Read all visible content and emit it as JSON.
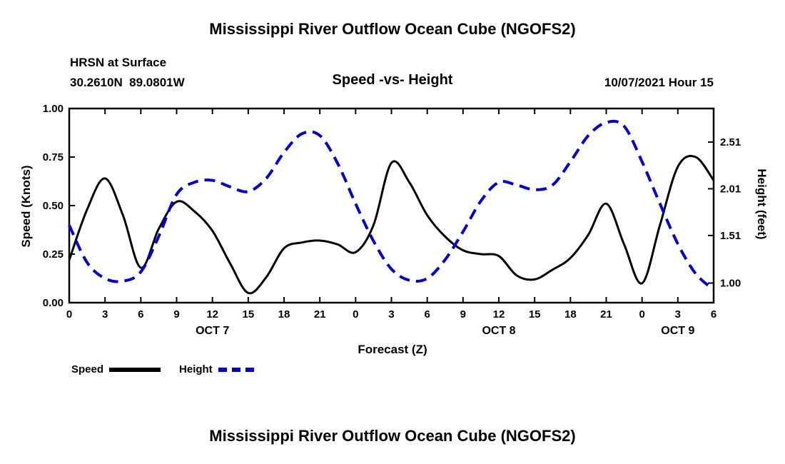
{
  "header": {
    "title": "Mississippi River Outflow Ocean Cube (NGOFS2)"
  },
  "meta": {
    "station": "HRSN at Surface",
    "coords": "30.2610N  89.0801W",
    "datetime": "10/07/2021 Hour 15"
  },
  "footer": {
    "title": "Mississippi River Outflow Ocean Cube (NGOFS2)"
  },
  "chart_data": {
    "type": "line",
    "title": "Speed -vs- Height",
    "xlabel": "Forecast (Z)",
    "x_start": 0,
    "x_step": 1.5,
    "x_end": 54,
    "x_tick_hours": [
      0,
      3,
      6,
      9,
      12,
      15,
      18,
      21,
      24,
      27,
      30,
      33,
      36,
      39,
      42,
      45,
      48,
      51,
      54
    ],
    "x_tick_labels": [
      "0",
      "3",
      "6",
      "9",
      "12",
      "15",
      "18",
      "21",
      "0",
      "3",
      "6",
      "9",
      "12",
      "15",
      "18",
      "21",
      "0",
      "3",
      "6"
    ],
    "date_ticks": [
      {
        "hour": 12,
        "label": "OCT 7"
      },
      {
        "hour": 36,
        "label": "OCT 8"
      },
      {
        "hour": 51,
        "label": "OCT 9"
      }
    ],
    "left_axis": {
      "label": "Speed (Knots)",
      "min": 0,
      "max": 1,
      "ticks": [
        {
          "value": 0.0,
          "label": "0.00"
        },
        {
          "value": 0.25,
          "label": "0.25"
        },
        {
          "value": 0.5,
          "label": "0.50"
        },
        {
          "value": 0.75,
          "label": "0.75"
        },
        {
          "value": 1.0,
          "label": "1.00"
        }
      ]
    },
    "right_axis": {
      "label": "Height (feet)",
      "min": 0.79,
      "max": 2.87,
      "ticks": [
        {
          "value": 1.0,
          "label": "1.00"
        },
        {
          "value": 1.51,
          "label": "1.51"
        },
        {
          "value": 2.01,
          "label": "2.01"
        },
        {
          "value": 2.51,
          "label": "2.51"
        }
      ]
    },
    "series": [
      {
        "name": "Speed",
        "axis": "left",
        "color": "#000000",
        "style": "solid",
        "values": [
          0.22,
          0.48,
          0.64,
          0.45,
          0.18,
          0.38,
          0.52,
          0.47,
          0.37,
          0.2,
          0.05,
          0.13,
          0.28,
          0.31,
          0.32,
          0.3,
          0.26,
          0.4,
          0.72,
          0.62,
          0.45,
          0.34,
          0.27,
          0.25,
          0.24,
          0.14,
          0.12,
          0.17,
          0.23,
          0.35,
          0.51,
          0.3,
          0.1,
          0.4,
          0.7,
          0.75,
          0.63
        ]
      },
      {
        "name": "Height",
        "axis": "right",
        "color": "#0000dd",
        "style": "dashed",
        "values": [
          1.62,
          1.22,
          1.05,
          1.02,
          1.12,
          1.5,
          1.95,
          2.08,
          2.1,
          2.03,
          1.98,
          2.12,
          2.4,
          2.6,
          2.58,
          2.28,
          1.85,
          1.45,
          1.15,
          1.03,
          1.05,
          1.25,
          1.55,
          1.88,
          2.08,
          2.05,
          2.0,
          2.05,
          2.3,
          2.58,
          2.72,
          2.68,
          2.3,
          1.85,
          1.42,
          1.1,
          0.93
        ]
      }
    ]
  }
}
